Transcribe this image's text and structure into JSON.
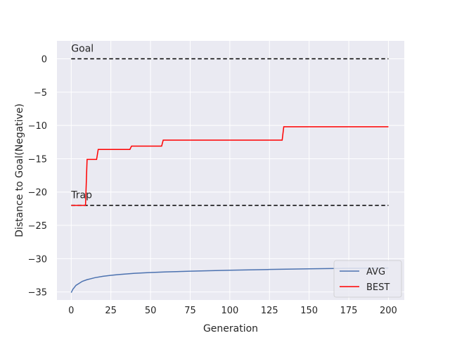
{
  "chart_data": {
    "type": "line",
    "xlabel": "Generation",
    "ylabel": "Distance to Goal(Negative)",
    "xlim": [
      -9,
      210
    ],
    "ylim": [
      -36.2,
      2.7
    ],
    "x_ticks": [
      0,
      25,
      50,
      75,
      100,
      125,
      150,
      175,
      200
    ],
    "y_ticks": [
      0,
      -5,
      -10,
      -15,
      -20,
      -25,
      -30,
      -35
    ],
    "x_tick_labels": [
      "0",
      "25",
      "50",
      "75",
      "100",
      "125",
      "150",
      "175",
      "200"
    ],
    "y_tick_labels": [
      "0",
      "−5",
      "−10",
      "−15",
      "−20",
      "−25",
      "−30",
      "−35"
    ],
    "grid": true,
    "legend_position": "bottom-right",
    "reference_lines": [
      {
        "label": "Goal",
        "y": 0,
        "x_start": 0,
        "x_end": 200,
        "style": "dashed",
        "color": "#000000"
      },
      {
        "label": "Trap",
        "y": -22,
        "x_start": 0,
        "x_end": 200,
        "style": "dashed",
        "color": "#000000"
      }
    ],
    "series": [
      {
        "name": "AVG",
        "color": "#4c72b0",
        "x": [
          0,
          1,
          2,
          3,
          5,
          7,
          10,
          15,
          20,
          25,
          30,
          40,
          50,
          60,
          75,
          100,
          125,
          150,
          175,
          200
        ],
        "y": [
          -35.1,
          -34.6,
          -34.3,
          -34.0,
          -33.7,
          -33.4,
          -33.15,
          -32.85,
          -32.65,
          -32.5,
          -32.38,
          -32.2,
          -32.08,
          -31.98,
          -31.88,
          -31.73,
          -31.62,
          -31.52,
          -31.45,
          -31.4
        ]
      },
      {
        "name": "BEST",
        "color": "#ff0000",
        "step": true,
        "x": [
          0,
          9,
          10,
          16,
          17,
          37,
          38,
          57,
          58,
          133,
          134,
          200
        ],
        "y": [
          -22.0,
          -22.0,
          -15.1,
          -15.1,
          -13.6,
          -13.6,
          -13.1,
          -13.1,
          -12.2,
          -12.2,
          -10.2,
          -10.2
        ]
      }
    ]
  }
}
